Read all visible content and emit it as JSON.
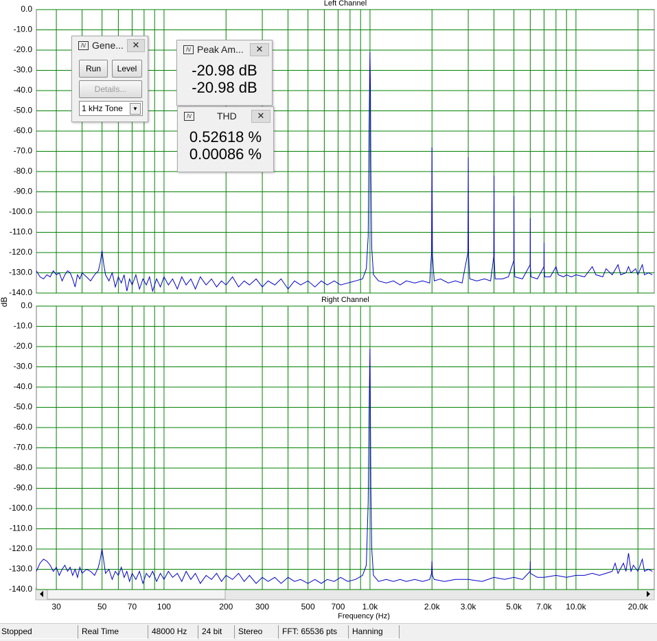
{
  "chart_data": [
    {
      "type": "line",
      "title": "Left Channel",
      "y_label": "dB",
      "log_x": true,
      "grid": true,
      "color": "#0000c8",
      "xlim": [
        24,
        24000
      ],
      "ylim": [
        -140,
        0
      ],
      "yticks": [
        {
          "value": 0,
          "label": "0.0"
        },
        {
          "value": -10,
          "label": "-10.0"
        },
        {
          "value": -20,
          "label": "-20.0"
        },
        {
          "value": -30,
          "label": "-30.0"
        },
        {
          "value": -40,
          "label": "-40.0"
        },
        {
          "value": -50,
          "label": "-50.0"
        },
        {
          "value": -60,
          "label": "-60.0"
        },
        {
          "value": -70,
          "label": "-70.0"
        },
        {
          "value": -80,
          "label": "-80.0"
        },
        {
          "value": -90,
          "label": "-90.0"
        },
        {
          "value": -100,
          "label": "-100.0"
        },
        {
          "value": -110,
          "label": "-110.0"
        },
        {
          "value": -120,
          "label": "-120.0"
        },
        {
          "value": -130,
          "label": "-130.0"
        },
        {
          "value": -140,
          "label": "-140.0"
        }
      ],
      "xgrid": [
        30,
        40,
        50,
        60,
        70,
        80,
        90,
        100,
        200,
        300,
        400,
        500,
        600,
        700,
        800,
        900,
        1000,
        2000,
        3000,
        4000,
        5000,
        6000,
        7000,
        8000,
        9000,
        10000,
        20000
      ],
      "x": [
        24,
        25,
        26,
        27,
        28,
        29,
        30,
        31,
        32,
        33,
        34,
        35,
        36,
        37,
        38,
        39,
        40,
        42,
        44,
        46,
        48,
        49,
        50,
        51,
        52,
        54,
        56,
        58,
        60,
        62,
        64,
        66,
        68,
        70,
        73,
        76,
        79,
        82,
        85,
        88,
        92,
        96,
        100,
        105,
        110,
        116,
        122,
        128,
        135,
        142,
        150,
        160,
        170,
        180,
        190,
        200,
        215,
        230,
        245,
        260,
        280,
        300,
        320,
        345,
        370,
        400,
        430,
        460,
        500,
        540,
        580,
        620,
        670,
        720,
        780,
        850,
        920,
        960,
        980,
        990,
        995,
        1000,
        1005,
        1010,
        1020,
        1040,
        1100,
        1200,
        1300,
        1400,
        1500,
        1650,
        1800,
        1950,
        1990,
        2000,
        2010,
        2050,
        2200,
        2400,
        2600,
        2800,
        2990,
        3000,
        3010,
        3050,
        3300,
        3600,
        3850,
        3990,
        4000,
        4010,
        4050,
        4400,
        4700,
        4990,
        5000,
        5010,
        5050,
        5500,
        5990,
        6000,
        6010,
        6050,
        6500,
        6990,
        7000,
        7010,
        7050,
        7500,
        8000,
        8200,
        8700,
        9000,
        9500,
        10000,
        11000,
        12000,
        12500,
        13500,
        14000,
        15000,
        16000,
        16500,
        17500,
        18000,
        18500,
        19500,
        20000,
        21000,
        21500,
        22500,
        23500
      ],
      "values": [
        -129,
        -132,
        -133,
        -131,
        -132,
        -129,
        -131,
        -130,
        -134,
        -131,
        -129,
        -130,
        -133,
        -137,
        -131,
        -133,
        -130,
        -132,
        -134,
        -131,
        -129,
        -125,
        -119,
        -126,
        -131,
        -134,
        -130,
        -137,
        -132,
        -135,
        -131,
        -139,
        -133,
        -136,
        -131,
        -138,
        -133,
        -136,
        -132,
        -139,
        -133,
        -137,
        -132,
        -136,
        -133,
        -138,
        -132,
        -136,
        -133,
        -138,
        -132,
        -136,
        -133,
        -137,
        -134,
        -136,
        -132,
        -137,
        -134,
        -136,
        -133,
        -137,
        -134,
        -136,
        -133,
        -138,
        -134,
        -136,
        -134,
        -137,
        -134,
        -136,
        -134,
        -136,
        -135,
        -134,
        -133,
        -128,
        -112,
        -60,
        -39,
        -21,
        -40,
        -80,
        -118,
        -131,
        -134,
        -135,
        -134,
        -136,
        -134,
        -135,
        -134,
        -135,
        -120,
        -68,
        -121,
        -134,
        -133,
        -135,
        -134,
        -135,
        -120,
        -73,
        -121,
        -133,
        -134,
        -133,
        -134,
        -122,
        -82,
        -123,
        -133,
        -133,
        -132,
        -124,
        -92,
        -125,
        -132,
        -133,
        -126,
        -103,
        -127,
        -132,
        -133,
        -127,
        -115,
        -128,
        -132,
        -132,
        -127,
        -131,
        -132,
        -131,
        -132,
        -131,
        -132,
        -127,
        -131,
        -132,
        -128,
        -131,
        -126,
        -131,
        -130,
        -127,
        -130,
        -128,
        -131,
        -126,
        -131,
        -130,
        -131
      ]
    },
    {
      "type": "line",
      "title": "Right Channel",
      "x_label": "Frequency (Hz)",
      "log_x": true,
      "grid": true,
      "color": "#0000c8",
      "xlim": [
        24,
        24000
      ],
      "ylim": [
        -140,
        0
      ],
      "yticks": [
        {
          "value": 0,
          "label": "0.0"
        },
        {
          "value": -10,
          "label": "-10.0"
        },
        {
          "value": -20,
          "label": "-20.0"
        },
        {
          "value": -30,
          "label": "-30.0"
        },
        {
          "value": -40,
          "label": "-40.0"
        },
        {
          "value": -50,
          "label": "-50.0"
        },
        {
          "value": -60,
          "label": "-60.0"
        },
        {
          "value": -70,
          "label": "-70.0"
        },
        {
          "value": -80,
          "label": "-80.0"
        },
        {
          "value": -90,
          "label": "-90.0"
        },
        {
          "value": -100,
          "label": "-100.0"
        },
        {
          "value": -110,
          "label": "-110.0"
        },
        {
          "value": -120,
          "label": "-120.0"
        },
        {
          "value": -130,
          "label": "-130.0"
        },
        {
          "value": -140,
          "label": "-140.0"
        }
      ],
      "xticks": [
        30,
        50,
        70,
        100,
        200,
        300,
        500,
        700,
        {
          "value": 1000,
          "label": "1.0k"
        },
        {
          "value": 2000,
          "label": "2.0k"
        },
        {
          "value": 3000,
          "label": "3.0k"
        },
        {
          "value": 5000,
          "label": "5.0k"
        },
        {
          "value": 7000,
          "label": "7.0k"
        },
        {
          "value": 10000,
          "label": "10.0k"
        },
        {
          "value": 20000,
          "label": "20.0k"
        }
      ],
      "xgrid": [
        30,
        40,
        50,
        60,
        70,
        80,
        90,
        100,
        200,
        300,
        400,
        500,
        600,
        700,
        800,
        900,
        1000,
        2000,
        3000,
        4000,
        5000,
        6000,
        7000,
        8000,
        9000,
        10000,
        20000
      ],
      "x": [
        24,
        25,
        26,
        27,
        28,
        29,
        30,
        31,
        32,
        33,
        34,
        35,
        36,
        37,
        38,
        39,
        40,
        42,
        44,
        46,
        48,
        49,
        50,
        51,
        52,
        54,
        56,
        58,
        60,
        62,
        64,
        66,
        68,
        70,
        73,
        76,
        79,
        82,
        85,
        88,
        92,
        96,
        100,
        105,
        110,
        116,
        122,
        128,
        135,
        142,
        150,
        160,
        170,
        180,
        190,
        200,
        215,
        230,
        245,
        260,
        280,
        300,
        320,
        345,
        370,
        400,
        430,
        460,
        500,
        540,
        580,
        620,
        670,
        720,
        780,
        850,
        920,
        960,
        980,
        990,
        1000,
        1005,
        1010,
        1020,
        1040,
        1100,
        1200,
        1300,
        1400,
        1500,
        1650,
        1800,
        1950,
        1990,
        2000,
        2010,
        2050,
        2300,
        2600,
        3000,
        3500,
        4000,
        4500,
        5000,
        5500,
        5990,
        6000,
        6010,
        6500,
        7000,
        8000,
        9000,
        10000,
        11000,
        12000,
        13000,
        14000,
        15000,
        15500,
        16000,
        17000,
        17500,
        18000,
        18500,
        19000,
        20000,
        21000,
        21500,
        22500,
        23500
      ],
      "values": [
        -131,
        -127,
        -125,
        -126,
        -128,
        -131,
        -129,
        -133,
        -130,
        -128,
        -131,
        -129,
        -133,
        -130,
        -134,
        -129,
        -132,
        -130,
        -131,
        -133,
        -129,
        -125,
        -120,
        -126,
        -132,
        -130,
        -135,
        -131,
        -133,
        -129,
        -134,
        -131,
        -136,
        -132,
        -135,
        -131,
        -137,
        -132,
        -134,
        -131,
        -136,
        -132,
        -135,
        -131,
        -134,
        -132,
        -136,
        -131,
        -135,
        -132,
        -137,
        -133,
        -135,
        -132,
        -136,
        -133,
        -135,
        -132,
        -136,
        -133,
        -137,
        -134,
        -136,
        -134,
        -137,
        -134,
        -136,
        -135,
        -137,
        -135,
        -137,
        -135,
        -136,
        -134,
        -136,
        -135,
        -133,
        -128,
        -97,
        -54,
        -21,
        -55,
        -90,
        -120,
        -133,
        -136,
        -135,
        -136,
        -135,
        -136,
        -135,
        -136,
        -135,
        -132,
        -126,
        -133,
        -135,
        -136,
        -135,
        -135,
        -136,
        -134,
        -135,
        -134,
        -135,
        -131,
        -126,
        -132,
        -134,
        -134,
        -133,
        -134,
        -133,
        -133,
        -132,
        -133,
        -132,
        -131,
        -127,
        -132,
        -127,
        -131,
        -122,
        -131,
        -128,
        -131,
        -125,
        -131,
        -130,
        -131
      ]
    }
  ],
  "generator": {
    "title": "Gene...",
    "run": "Run",
    "level": "Level",
    "details": "Details...",
    "select": "1 kHz Tone"
  },
  "peak_amplitude": {
    "title": "Peak Am...",
    "values": [
      "-20.98 dB",
      "-20.98 dB"
    ]
  },
  "thd": {
    "title": "THD",
    "values": [
      "0.52618 %",
      "0.00086 %"
    ]
  },
  "status_bar": [
    "Stopped",
    "Real Time",
    "48000 Hz",
    "24 bit",
    "Stereo",
    "FFT: 65536 pts",
    "Hanning"
  ]
}
